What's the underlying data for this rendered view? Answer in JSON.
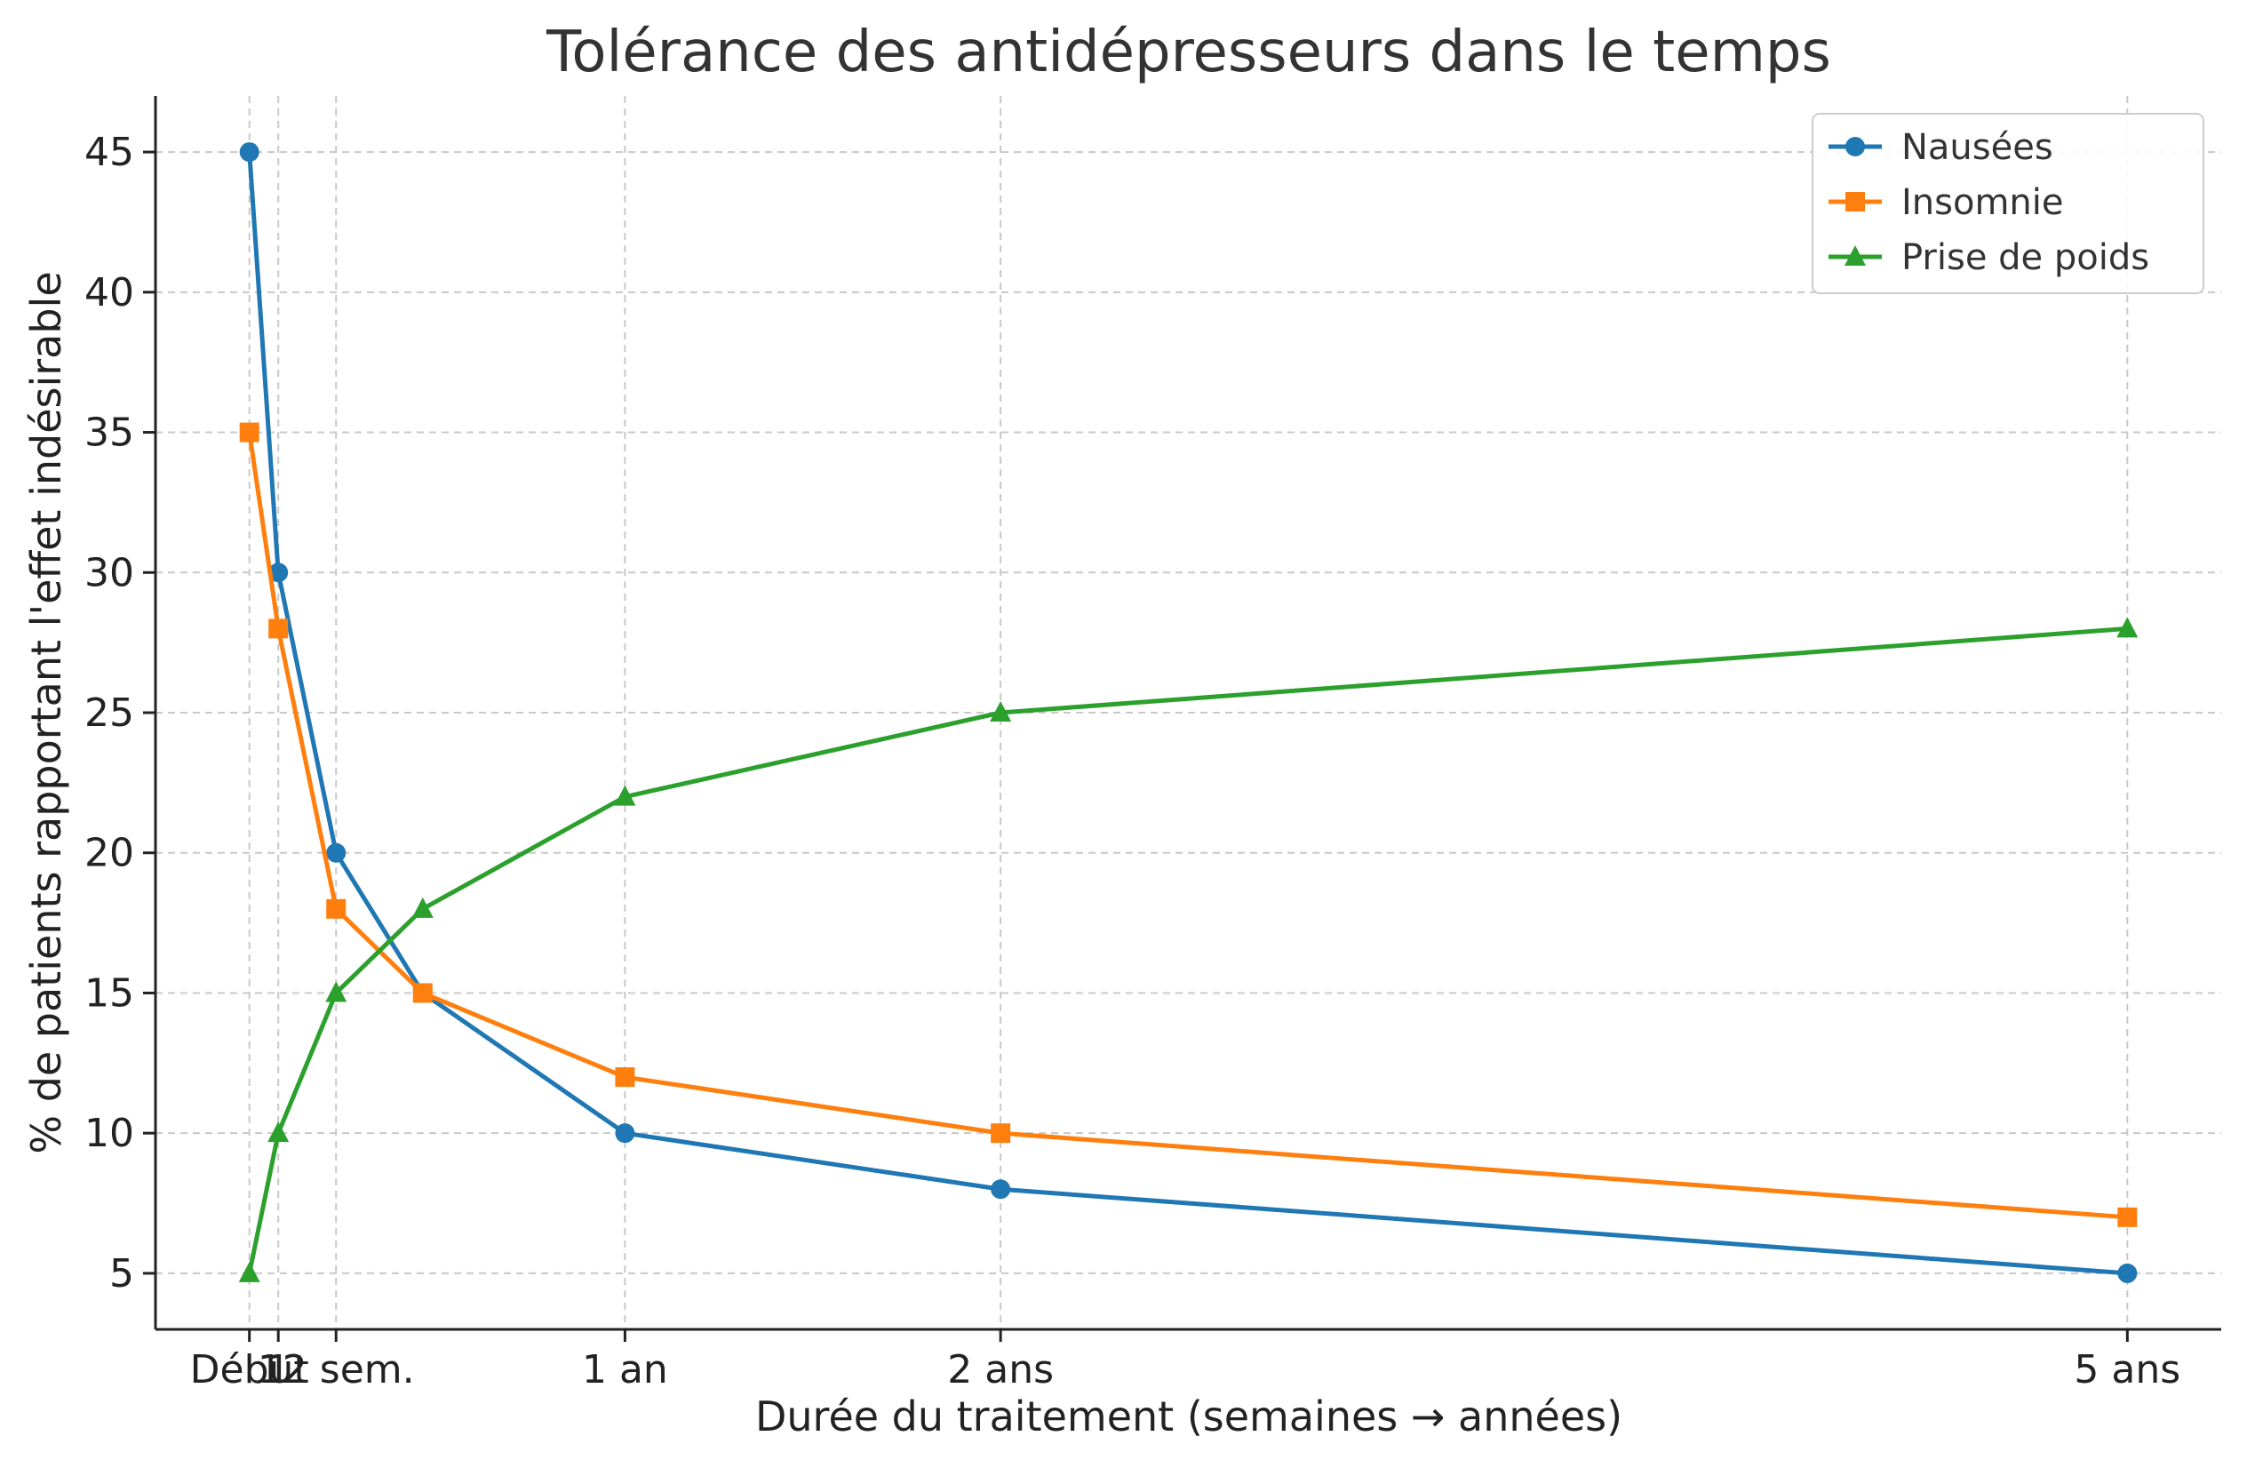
{
  "chart_data": {
    "type": "line",
    "title": "Tolérance des antidépresseurs dans le temps",
    "xlabel": "Durée du traitement (semaines → années)",
    "ylabel": "% de patients rapportant l'effet indésirable",
    "x": [
      0,
      0.04,
      0.12,
      0.24,
      0.52,
      1.04,
      2.6
    ],
    "xlim": [
      -0.13,
      2.73
    ],
    "x_ticks": [
      {
        "value": 0,
        "label": "Début"
      },
      {
        "value": 0.04,
        "label": "1"
      },
      {
        "value": 0.12,
        "label": "12 sem."
      },
      {
        "value": 0.52,
        "label": "1 an"
      },
      {
        "value": 1.04,
        "label": "2 ans"
      },
      {
        "value": 2.6,
        "label": "5 ans"
      }
    ],
    "ylim": [
      3,
      47
    ],
    "y_ticks": [
      5,
      10,
      15,
      20,
      25,
      30,
      35,
      40,
      45
    ],
    "grid": true,
    "legend_position": "top-right",
    "series": [
      {
        "name": "Nausées",
        "color": "#1f77b4",
        "marker": "circle",
        "values": [
          45,
          30,
          20,
          15,
          10,
          8,
          5
        ]
      },
      {
        "name": "Insomnie",
        "color": "#ff7f0e",
        "marker": "square",
        "values": [
          35,
          28,
          18,
          15,
          12,
          10,
          7
        ]
      },
      {
        "name": "Prise de poids",
        "color": "#2ca02c",
        "marker": "triangle",
        "values": [
          5,
          10,
          15,
          18,
          22,
          25,
          28
        ]
      }
    ]
  }
}
